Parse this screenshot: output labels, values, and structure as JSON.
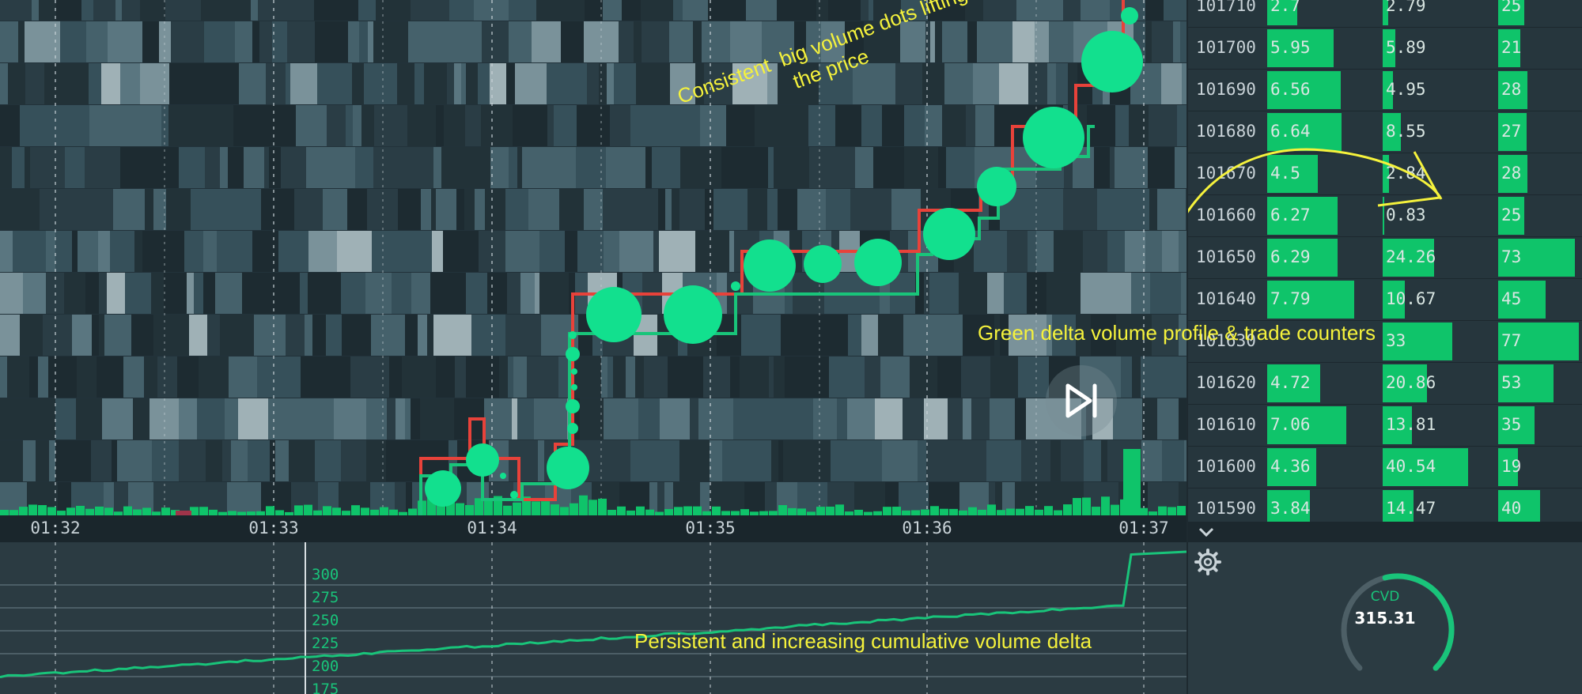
{
  "time_axis": {
    "labels": [
      "01:32",
      "01:33",
      "01:34",
      "01:35",
      "01:36",
      "01:37"
    ]
  },
  "cvd_axis": {
    "ticks": [
      "300",
      "275",
      "250",
      "225",
      "200",
      "175"
    ]
  },
  "dom": {
    "rows": [
      {
        "price": "101710",
        "delta": "2.7",
        "volume": "2.79",
        "trades": "25"
      },
      {
        "price": "101700",
        "delta": "5.95",
        "volume": "5.89",
        "trades": "21"
      },
      {
        "price": "101690",
        "delta": "6.56",
        "volume": "4.95",
        "trades": "28"
      },
      {
        "price": "101680",
        "delta": "6.64",
        "volume": "8.55",
        "trades": "27"
      },
      {
        "price": "101670",
        "delta": "4.5",
        "volume": "2.84",
        "trades": "28"
      },
      {
        "price": "101660",
        "delta": "6.27",
        "volume": "0.83",
        "trades": "25"
      },
      {
        "price": "101650",
        "delta": "6.29",
        "volume": "24.26",
        "trades": "73"
      },
      {
        "price": "101640",
        "delta": "7.79",
        "volume": "10.67",
        "trades": "45"
      },
      {
        "price": "101630",
        "delta": "",
        "volume": "33",
        "trades": "77"
      },
      {
        "price": "101620",
        "delta": "4.72",
        "volume": "20.86",
        "trades": "53"
      },
      {
        "price": "101610",
        "delta": "7.06",
        "volume": "13.81",
        "trades": "35"
      },
      {
        "price": "101600",
        "delta": "4.36",
        "volume": "40.54",
        "trades": "19"
      },
      {
        "price": "101590",
        "delta": "3.84",
        "volume": "14.47",
        "trades": "40"
      }
    ]
  },
  "gauge": {
    "title": "CVD",
    "value": "315.31",
    "fill_fraction": 0.55
  },
  "annotations": {
    "dots": "Consistent  big volume dots lifting\nthe price",
    "profile": "Green delta volume profile & trade counters",
    "cvd": "Persistent and increasing cumulative volume delta"
  },
  "colors": {
    "accent_green": "#0fc46a",
    "price_red": "#e8423a",
    "annotation_yellow": "#f5f23c"
  },
  "icons": {
    "play": "skip-forward-icon",
    "settings": "gear-icon",
    "collapse": "chevron-down-icon"
  }
}
